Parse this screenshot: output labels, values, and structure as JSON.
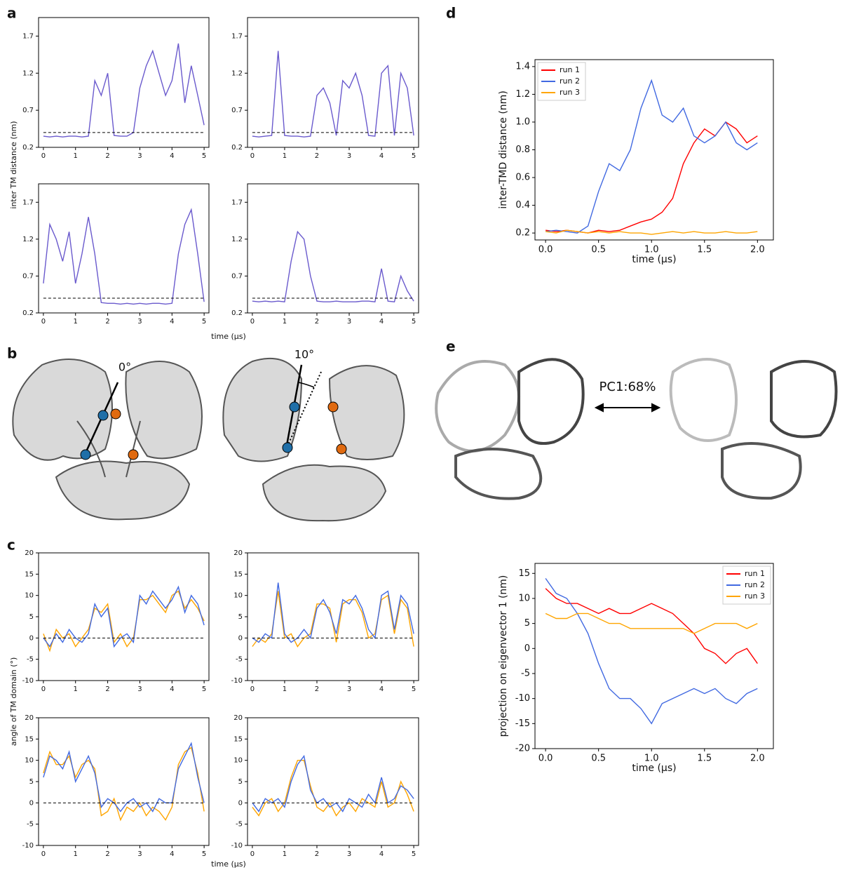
{
  "figure": {
    "panel_labels": [
      "a",
      "b",
      "c",
      "d",
      "e"
    ],
    "a_ylabel": "inter TM distance (nm)",
    "a_xlabel": "time (μs)",
    "b_angle_left": "0°",
    "b_angle_right": "10°",
    "c_ylabel": "angle of TM domain (°)",
    "c_xlabel": "time (μs)",
    "e_pc_label": "PC1:68%"
  },
  "chart_data": [
    {
      "type": "line",
      "x": [
        0,
        0.2,
        0.4,
        0.6,
        0.8,
        1,
        1.2,
        1.4,
        1.6,
        1.8,
        2,
        2.2,
        2.4,
        2.6,
        2.8,
        3,
        3.2,
        3.4,
        3.6,
        3.8,
        4,
        4.2,
        4.4,
        4.6,
        4.8,
        5
      ],
      "series": [
        {
          "color": "#6a5acd",
          "values": [
            0.35,
            0.34,
            0.35,
            0.34,
            0.35,
            0.35,
            0.34,
            0.35,
            1.1,
            0.9,
            1.2,
            0.36,
            0.35,
            0.35,
            0.4,
            1.0,
            1.3,
            1.5,
            1.2,
            0.9,
            1.1,
            1.6,
            0.8,
            1.3,
            0.9,
            0.5
          ]
        }
      ],
      "hline": 0.4,
      "xlim": [
        -0.15,
        5.15
      ],
      "ylim": [
        0.2,
        1.95
      ],
      "xticks": [
        0,
        1,
        2,
        3,
        4,
        5
      ],
      "yticks": [
        0.2,
        0.7,
        1.2,
        1.7
      ]
    },
    {
      "type": "line",
      "x": [
        0,
        0.2,
        0.4,
        0.6,
        0.8,
        1,
        1.2,
        1.4,
        1.6,
        1.8,
        2,
        2.2,
        2.4,
        2.6,
        2.8,
        3,
        3.2,
        3.4,
        3.6,
        3.8,
        4,
        4.2,
        4.4,
        4.6,
        4.8,
        5
      ],
      "series": [
        {
          "color": "#6a5acd",
          "values": [
            0.35,
            0.34,
            0.35,
            0.36,
            1.5,
            0.36,
            0.35,
            0.35,
            0.34,
            0.35,
            0.9,
            1.0,
            0.8,
            0.36,
            1.1,
            1.0,
            1.2,
            0.9,
            0.36,
            0.35,
            1.2,
            1.3,
            0.36,
            1.2,
            1.0,
            0.36
          ]
        }
      ],
      "hline": 0.4,
      "xlim": [
        -0.15,
        5.15
      ],
      "ylim": [
        0.2,
        1.95
      ],
      "xticks": [
        0,
        1,
        2,
        3,
        4,
        5
      ],
      "yticks": [
        0.2,
        0.7,
        1.2,
        1.7
      ]
    },
    {
      "type": "line",
      "x": [
        0,
        0.2,
        0.4,
        0.6,
        0.8,
        1,
        1.2,
        1.4,
        1.6,
        1.8,
        2,
        2.2,
        2.4,
        2.6,
        2.8,
        3,
        3.2,
        3.4,
        3.6,
        3.8,
        4,
        4.2,
        4.4,
        4.6,
        4.8,
        5
      ],
      "series": [
        {
          "color": "#6a5acd",
          "values": [
            0.6,
            1.4,
            1.2,
            0.9,
            1.3,
            0.6,
            1.0,
            1.5,
            1.0,
            0.34,
            0.33,
            0.33,
            0.32,
            0.33,
            0.32,
            0.33,
            0.32,
            0.33,
            0.33,
            0.32,
            0.33,
            1.0,
            1.4,
            1.6,
            1.0,
            0.35
          ]
        }
      ],
      "hline": 0.4,
      "xlim": [
        -0.15,
        5.15
      ],
      "ylim": [
        0.2,
        1.95
      ],
      "xticks": [
        0,
        1,
        2,
        3,
        4,
        5
      ],
      "yticks": [
        0.2,
        0.7,
        1.2,
        1.7
      ]
    },
    {
      "type": "line",
      "x": [
        0,
        0.2,
        0.4,
        0.6,
        0.8,
        1,
        1.2,
        1.4,
        1.6,
        1.8,
        2,
        2.2,
        2.4,
        2.6,
        2.8,
        3,
        3.2,
        3.4,
        3.6,
        3.8,
        4,
        4.2,
        4.4,
        4.6,
        4.8,
        5
      ],
      "series": [
        {
          "color": "#6a5acd",
          "values": [
            0.36,
            0.35,
            0.36,
            0.35,
            0.36,
            0.35,
            0.9,
            1.3,
            1.2,
            0.7,
            0.36,
            0.35,
            0.35,
            0.36,
            0.35,
            0.35,
            0.35,
            0.36,
            0.36,
            0.35,
            0.8,
            0.36,
            0.35,
            0.7,
            0.5,
            0.36
          ]
        }
      ],
      "hline": 0.4,
      "xlim": [
        -0.15,
        5.15
      ],
      "ylim": [
        0.2,
        1.95
      ],
      "xticks": [
        0,
        1,
        2,
        3,
        4,
        5
      ],
      "yticks": [
        0.2,
        0.7,
        1.2,
        1.7
      ]
    },
    {
      "type": "line",
      "x": [
        0,
        0.2,
        0.4,
        0.6,
        0.8,
        1,
        1.2,
        1.4,
        1.6,
        1.8,
        2,
        2.2,
        2.4,
        2.6,
        2.8,
        3,
        3.2,
        3.4,
        3.6,
        3.8,
        4,
        4.2,
        4.4,
        4.6,
        4.8,
        5
      ],
      "series": [
        {
          "color": "#ffa500",
          "values": [
            1,
            -3,
            2,
            0,
            1,
            -2,
            0,
            2,
            7,
            6,
            8,
            -1,
            1,
            -2,
            0,
            9,
            9,
            10,
            8,
            6,
            10,
            11,
            7,
            9,
            7,
            4
          ]
        },
        {
          "color": "#4169e1",
          "values": [
            0,
            -2,
            1,
            -1,
            2,
            0,
            -1,
            1,
            8,
            5,
            7,
            -2,
            0,
            1,
            -1,
            10,
            8,
            11,
            9,
            7,
            9,
            12,
            6,
            10,
            8,
            3
          ]
        }
      ],
      "hline": 0,
      "xlim": [
        -0.15,
        5.15
      ],
      "ylim": [
        -10,
        20
      ],
      "xticks": [
        0,
        1,
        2,
        3,
        4,
        5
      ],
      "yticks": [
        -10,
        -5,
        0,
        5,
        10,
        15,
        20
      ]
    },
    {
      "type": "line",
      "x": [
        0,
        0.2,
        0.4,
        0.6,
        0.8,
        1,
        1.2,
        1.4,
        1.6,
        1.8,
        2,
        2.2,
        2.4,
        2.6,
        2.8,
        3,
        3.2,
        3.4,
        3.6,
        3.8,
        4,
        4.2,
        4.4,
        4.6,
        4.8,
        5
      ],
      "series": [
        {
          "color": "#ffa500",
          "values": [
            -2,
            0,
            -1,
            1,
            11,
            0,
            1,
            -2,
            0,
            1,
            8,
            8,
            7,
            -1,
            8,
            9,
            9,
            6,
            0,
            1,
            9,
            10,
            1,
            9,
            7,
            -2
          ]
        },
        {
          "color": "#4169e1",
          "values": [
            0,
            -1,
            1,
            0,
            13,
            1,
            -1,
            0,
            2,
            0,
            7,
            9,
            6,
            1,
            9,
            8,
            10,
            7,
            2,
            0,
            10,
            11,
            2,
            10,
            8,
            1
          ]
        }
      ],
      "hline": 0,
      "xlim": [
        -0.15,
        5.15
      ],
      "ylim": [
        -10,
        20
      ],
      "xticks": [
        0,
        1,
        2,
        3,
        4,
        5
      ],
      "yticks": [
        -10,
        -5,
        0,
        5,
        10,
        15,
        20
      ]
    },
    {
      "type": "line",
      "x": [
        0,
        0.2,
        0.4,
        0.6,
        0.8,
        1,
        1.2,
        1.4,
        1.6,
        1.8,
        2,
        2.2,
        2.4,
        2.6,
        2.8,
        3,
        3.2,
        3.4,
        3.6,
        3.8,
        4,
        4.2,
        4.4,
        4.6,
        4.8,
        5
      ],
      "series": [
        {
          "color": "#ffa500",
          "values": [
            7,
            12,
            9,
            9,
            11,
            6,
            9,
            10,
            8,
            -3,
            -2,
            1,
            -4,
            -1,
            -2,
            0,
            -3,
            -1,
            -2,
            -4,
            -1,
            9,
            12,
            13,
            7,
            -2
          ]
        },
        {
          "color": "#4169e1",
          "values": [
            6,
            11,
            10,
            8,
            12,
            5,
            8,
            11,
            7,
            -1,
            1,
            0,
            -2,
            0,
            1,
            -1,
            0,
            -2,
            1,
            0,
            0,
            8,
            11,
            14,
            6,
            0
          ]
        }
      ],
      "hline": 0,
      "xlim": [
        -0.15,
        5.15
      ],
      "ylim": [
        -10,
        20
      ],
      "xticks": [
        0,
        1,
        2,
        3,
        4,
        5
      ],
      "yticks": [
        -10,
        -5,
        0,
        5,
        10,
        15,
        20
      ]
    },
    {
      "type": "line",
      "x": [
        0,
        0.2,
        0.4,
        0.6,
        0.8,
        1,
        1.2,
        1.4,
        1.6,
        1.8,
        2,
        2.2,
        2.4,
        2.6,
        2.8,
        3,
        3.2,
        3.4,
        3.6,
        3.8,
        4,
        4.2,
        4.4,
        4.6,
        4.8,
        5
      ],
      "series": [
        {
          "color": "#ffa500",
          "values": [
            -1,
            -3,
            0,
            1,
            -2,
            0,
            6,
            10,
            10,
            4,
            -1,
            -2,
            0,
            -3,
            -1,
            0,
            -2,
            1,
            0,
            -1,
            5,
            -1,
            0,
            5,
            2,
            -2
          ]
        },
        {
          "color": "#4169e1",
          "values": [
            0,
            -2,
            1,
            0,
            1,
            -1,
            5,
            9,
            11,
            3,
            0,
            1,
            -1,
            0,
            -2,
            1,
            0,
            -1,
            2,
            0,
            6,
            0,
            1,
            4,
            3,
            1
          ]
        }
      ],
      "hline": 0,
      "xlim": [
        -0.15,
        5.15
      ],
      "ylim": [
        -10,
        20
      ],
      "xticks": [
        0,
        1,
        2,
        3,
        4,
        5
      ],
      "yticks": [
        -10,
        -5,
        0,
        5,
        10,
        15,
        20
      ]
    },
    {
      "type": "line",
      "xlabel": "time (μs)",
      "ylabel": "inter-TMD distance (nm)",
      "legend": "upper left",
      "x": [
        0,
        0.1,
        0.2,
        0.3,
        0.4,
        0.5,
        0.6,
        0.7,
        0.8,
        0.9,
        1,
        1.1,
        1.2,
        1.3,
        1.4,
        1.5,
        1.6,
        1.7,
        1.8,
        1.9,
        2
      ],
      "series": [
        {
          "name": "run 1",
          "color": "#ff0000",
          "values": [
            0.22,
            0.21,
            0.22,
            0.21,
            0.2,
            0.22,
            0.21,
            0.22,
            0.25,
            0.28,
            0.3,
            0.35,
            0.45,
            0.7,
            0.85,
            0.95,
            0.9,
            1.0,
            0.95,
            0.85,
            0.9
          ]
        },
        {
          "name": "run 2",
          "color": "#4169e1",
          "values": [
            0.21,
            0.22,
            0.21,
            0.2,
            0.25,
            0.5,
            0.7,
            0.65,
            0.8,
            1.1,
            1.3,
            1.05,
            1.0,
            1.1,
            0.9,
            0.85,
            0.9,
            1.0,
            0.85,
            0.8,
            0.85
          ]
        },
        {
          "name": "run 3",
          "color": "#ffa500",
          "values": [
            0.21,
            0.2,
            0.22,
            0.21,
            0.2,
            0.21,
            0.2,
            0.21,
            0.2,
            0.2,
            0.19,
            0.2,
            0.21,
            0.2,
            0.21,
            0.2,
            0.2,
            0.21,
            0.2,
            0.2,
            0.21
          ]
        }
      ],
      "xlim": [
        -0.1,
        2.15
      ],
      "ylim": [
        0.15,
        1.45
      ],
      "xticks": [
        {
          "value": 0,
          "label": "0.0"
        },
        0.5,
        {
          "value": 1,
          "label": "1.0"
        },
        1.5,
        {
          "value": 2,
          "label": "2.0"
        }
      ],
      "yticks": [
        0.2,
        0.4,
        0.6,
        0.8,
        {
          "value": 1,
          "label": "1.0"
        },
        1.2,
        1.4
      ]
    },
    {
      "type": "line",
      "xlabel": "time (μs)",
      "ylabel": "projection on eigenvector 1 (nm)",
      "legend": "upper right",
      "x": [
        0,
        0.1,
        0.2,
        0.3,
        0.4,
        0.5,
        0.6,
        0.7,
        0.8,
        0.9,
        1,
        1.1,
        1.2,
        1.3,
        1.4,
        1.5,
        1.6,
        1.7,
        1.8,
        1.9,
        2
      ],
      "series": [
        {
          "name": "run 1",
          "color": "#ff0000",
          "values": [
            12,
            10,
            9,
            9,
            8,
            7,
            8,
            7,
            7,
            8,
            9,
            8,
            7,
            5,
            3,
            0,
            -1,
            -3,
            -1,
            0,
            -3
          ]
        },
        {
          "name": "run 2",
          "color": "#4169e1",
          "values": [
            14,
            11,
            10,
            7,
            3,
            -3,
            -8,
            -10,
            -10,
            -12,
            -15,
            -11,
            -10,
            -9,
            -8,
            -9,
            -8,
            -10,
            -11,
            -9,
            -8
          ]
        },
        {
          "name": "run 3",
          "color": "#ffa500",
          "values": [
            7,
            6,
            6,
            7,
            7,
            6,
            5,
            5,
            4,
            4,
            4,
            4,
            4,
            4,
            3,
            4,
            5,
            5,
            5,
            4,
            5
          ]
        }
      ],
      "xlim": [
        -0.1,
        2.15
      ],
      "ylim": [
        -20,
        17
      ],
      "xticks": [
        {
          "value": 0,
          "label": "0.0"
        },
        0.5,
        {
          "value": 1,
          "label": "1.0"
        },
        1.5,
        {
          "value": 2,
          "label": "2.0"
        }
      ],
      "yticks": [
        -20,
        -15,
        -10,
        -5,
        0,
        5,
        10,
        15
      ]
    }
  ]
}
